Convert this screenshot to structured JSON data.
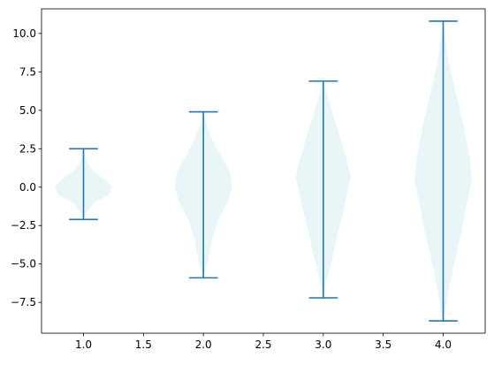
{
  "chart_data": {
    "type": "violin",
    "title": "",
    "xlabel": "",
    "ylabel": "",
    "xlim": [
      0.65,
      4.35
    ],
    "ylim": [
      -9.5,
      11.6
    ],
    "xticks": [
      1.0,
      1.5,
      2.0,
      2.5,
      3.0,
      3.5,
      4.0
    ],
    "xtick_labels": [
      "1.0",
      "1.5",
      "2.0",
      "2.5",
      "3.0",
      "3.5",
      "4.0"
    ],
    "yticks": [
      -7.5,
      -5.0,
      -2.5,
      0.0,
      2.5,
      5.0,
      7.5,
      10.0
    ],
    "ytick_labels": [
      "−7.5",
      "−5.0",
      "−2.5",
      "0.0",
      "2.5",
      "5.0",
      "7.5",
      "10.0"
    ],
    "grid": false,
    "colors": {
      "body": "#d6eef3",
      "lines": "#1f77b4"
    },
    "violins": [
      {
        "position": 1.0,
        "min": -2.1,
        "max": 2.5,
        "profile": [
          [
            -2.1,
            0.0
          ],
          [
            -1.6,
            0.03
          ],
          [
            -1.0,
            0.09
          ],
          [
            -0.5,
            0.21
          ],
          [
            0.0,
            0.24
          ],
          [
            0.5,
            0.18
          ],
          [
            1.0,
            0.09
          ],
          [
            1.5,
            0.04
          ],
          [
            2.0,
            0.015
          ],
          [
            2.5,
            0.0
          ]
        ]
      },
      {
        "position": 2.0,
        "min": -5.9,
        "max": 4.9,
        "profile": [
          [
            -5.9,
            0.0
          ],
          [
            -4.8,
            0.04
          ],
          [
            -3.5,
            0.07
          ],
          [
            -2.2,
            0.12
          ],
          [
            -1.0,
            0.2
          ],
          [
            0.0,
            0.24
          ],
          [
            1.0,
            0.22
          ],
          [
            2.0,
            0.15
          ],
          [
            3.0,
            0.08
          ],
          [
            4.0,
            0.03
          ],
          [
            4.9,
            0.0
          ]
        ]
      },
      {
        "position": 3.0,
        "min": -7.2,
        "max": 6.9,
        "profile": [
          [
            -7.2,
            0.0
          ],
          [
            -6.0,
            0.03
          ],
          [
            -4.5,
            0.08
          ],
          [
            -3.0,
            0.12
          ],
          [
            -1.5,
            0.17
          ],
          [
            0.0,
            0.21
          ],
          [
            0.6,
            0.23
          ],
          [
            2.0,
            0.19
          ],
          [
            3.5,
            0.13
          ],
          [
            5.0,
            0.07
          ],
          [
            6.9,
            0.0
          ]
        ]
      },
      {
        "position": 4.0,
        "min": -8.7,
        "max": 10.8,
        "profile": [
          [
            -8.7,
            0.0
          ],
          [
            -7.0,
            0.04
          ],
          [
            -5.0,
            0.09
          ],
          [
            -3.0,
            0.15
          ],
          [
            -1.0,
            0.2
          ],
          [
            0.5,
            0.24
          ],
          [
            2.0,
            0.22
          ],
          [
            4.0,
            0.17
          ],
          [
            6.0,
            0.11
          ],
          [
            8.0,
            0.05
          ],
          [
            9.5,
            0.02
          ],
          [
            10.8,
            0.0
          ]
        ]
      }
    ]
  }
}
